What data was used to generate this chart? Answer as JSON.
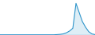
{
  "x": [
    0,
    1,
    2,
    3,
    4,
    5,
    6,
    7,
    8,
    9,
    10,
    11,
    12,
    13,
    14,
    15,
    16,
    17,
    18,
    19,
    20,
    21,
    22,
    23,
    24,
    25,
    26,
    27,
    28,
    29,
    30
  ],
  "y": [
    0.1,
    0.1,
    0.1,
    0.1,
    0.1,
    0.1,
    0.1,
    0.1,
    0.1,
    0.1,
    0.1,
    0.1,
    0.1,
    0.1,
    0.1,
    0.1,
    0.1,
    0.1,
    0.2,
    0.3,
    0.5,
    1.0,
    1.8,
    3.0,
    14.0,
    10.0,
    6.0,
    3.5,
    1.5,
    0.5,
    0.2
  ],
  "line_color": "#2590c8",
  "fill_color": "#2590c8",
  "fill_alpha": 0.15,
  "background_color": "#ffffff",
  "ylim_min": 0,
  "ylim_max": 15.5
}
